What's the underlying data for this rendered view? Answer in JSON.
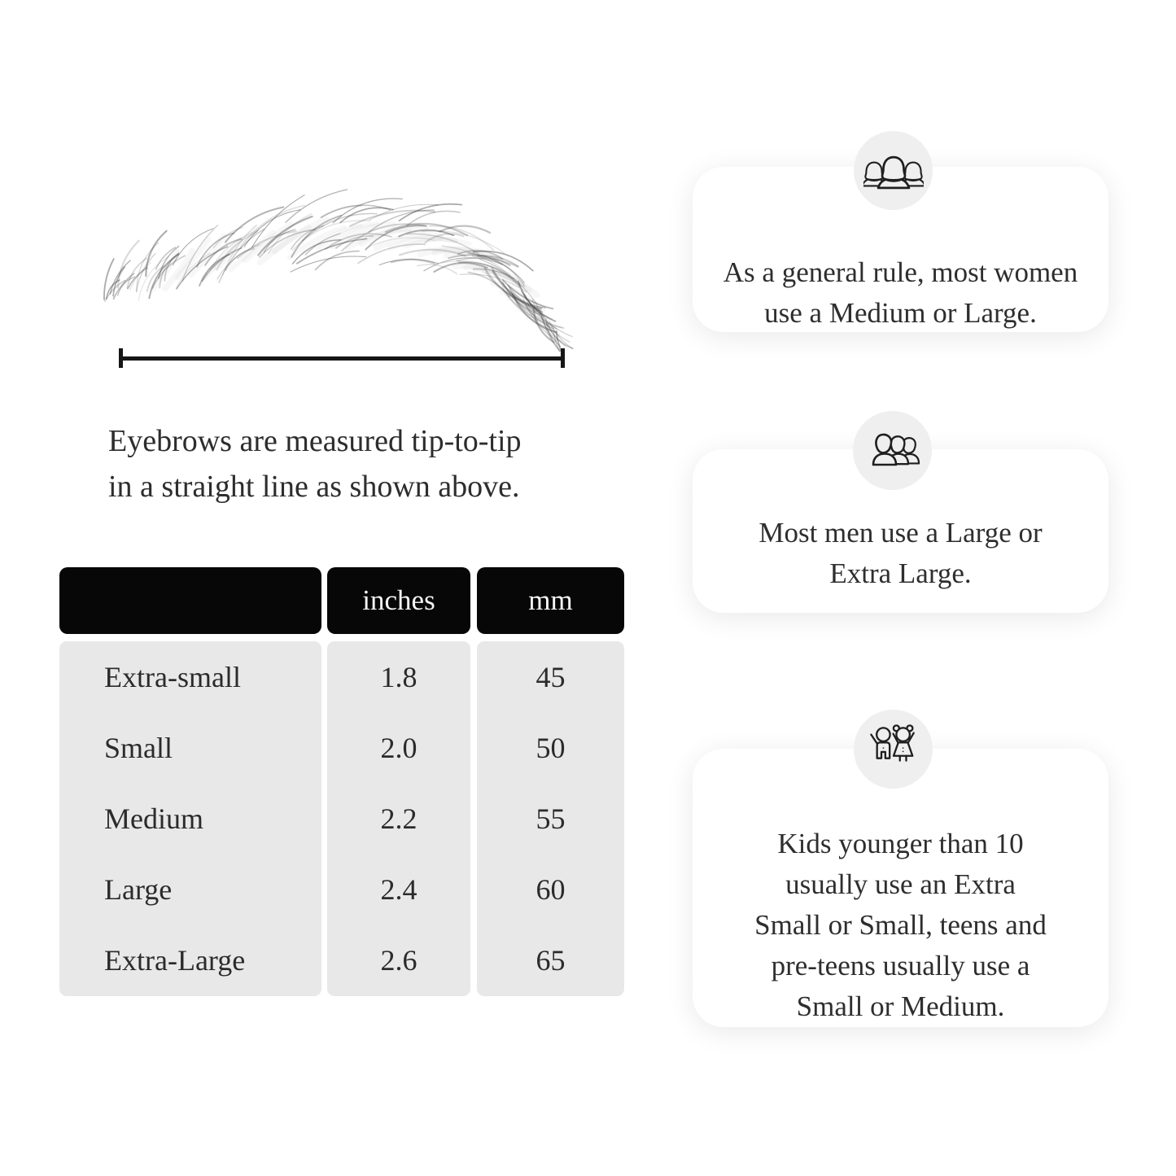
{
  "measure_section": {
    "caption": "Eyebrows are measured tip-to-tip\nin a straight line as shown above."
  },
  "size_table": {
    "headers": {
      "size": "",
      "inches": "inches",
      "mm": "mm"
    },
    "rows": [
      {
        "size": "Extra-small",
        "inches": "1.8",
        "mm": "45"
      },
      {
        "size": "Small",
        "inches": "2.0",
        "mm": "50"
      },
      {
        "size": "Medium",
        "inches": "2.2",
        "mm": "55"
      },
      {
        "size": "Large",
        "inches": "2.4",
        "mm": "60"
      },
      {
        "size": "Extra-Large",
        "inches": "2.6",
        "mm": "65"
      }
    ]
  },
  "cards": [
    {
      "icon": "women-group-icon",
      "text": "As a general rule, most women\nuse a Medium or Large."
    },
    {
      "icon": "men-group-icon",
      "text": "Most men use a Large or\nExtra Large."
    },
    {
      "icon": "kids-icon",
      "text": "Kids younger than 10\nusually use an Extra\nSmall or Small, teens and\npre-teens usually use a\nSmall or Medium."
    }
  ],
  "colors": {
    "background": "#ffffff",
    "table_header_bg": "#070707",
    "table_header_text": "#f7f7f7",
    "table_body_bg": "#e8e8e8",
    "card_bg": "#ffffff",
    "icon_circle_bg": "#efefef",
    "text": "#2e2e2e",
    "measure_line": "#161616"
  }
}
